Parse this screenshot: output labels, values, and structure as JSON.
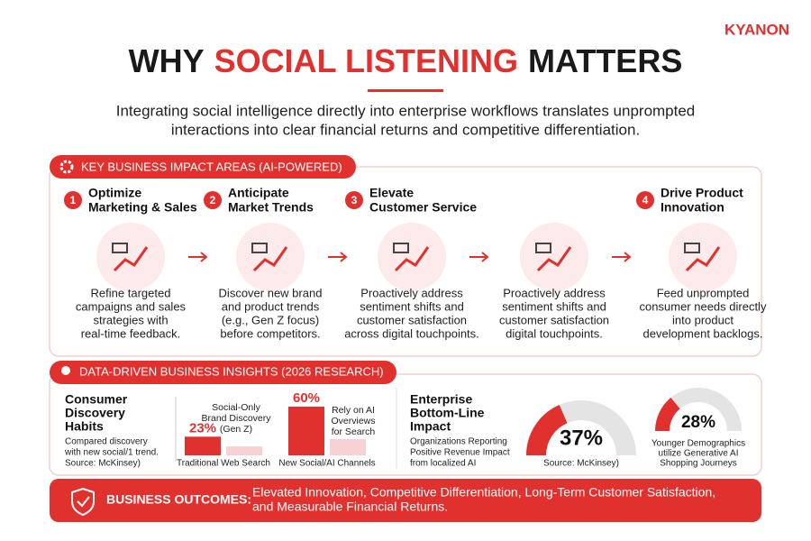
{
  "logo": "KYANON",
  "header": {
    "title_parts": [
      "WHY",
      "SOCIAL LISTENING",
      "MATTERS"
    ],
    "subtitle_lines": [
      "Integrating social intelligence directly into enterprise workflows translates unprompted",
      "interactions into clear financial returns and competitive differentiation."
    ]
  },
  "impact": {
    "heading": "KEY BUSINESS IMPACT AREAS (AI-POWERED)",
    "steps": [
      {
        "number": "1",
        "title_lines": [
          "Optimize",
          "Marketing & Sales"
        ],
        "text_lines": [
          "Refine targeted",
          "campaigns and sales",
          "strategies with",
          "real-time feedback."
        ]
      },
      {
        "number": "2",
        "title_lines": [
          "Anticipate",
          "Market Trends"
        ],
        "text_lines": [
          "Discover new brand",
          "and product trends",
          "(e.g., Gen Z focus)",
          "before competitors."
        ]
      },
      {
        "number": "3",
        "title_lines": [
          "Elevate",
          "Customer Service"
        ],
        "text_lines": [
          "Proactively address",
          "sentiment shifts and",
          "customer satisfaction",
          "across digital touchpoints."
        ]
      },
      {
        "text_lines": [
          "Proactively address",
          "sentiment shifts and",
          "customer satisfaction",
          "digital touchpoints."
        ]
      },
      {
        "number": "4",
        "title_lines": [
          "Drive Product",
          "Innovation"
        ],
        "text_lines": [
          "Feed unprompted",
          "consumer needs directly",
          "into product",
          "development backlogs."
        ]
      }
    ]
  },
  "insights": {
    "heading": "DATA-DRIVEN BUSINESS INSIGHTS (2026 RESEARCH)",
    "discovery": {
      "title_lines": [
        "Consumer",
        "Discovery",
        "Habits"
      ],
      "note_lines": [
        "Compared discovery",
        "with new social/1 trend.",
        "Source: McKinsey)"
      ],
      "groups": [
        {
          "category": "Traditional Web Search",
          "highlight": {
            "value": 23,
            "label": "23%"
          },
          "compare": 11,
          "annotation_lines": [
            "Social-Only",
            "Brand Discovery",
            "(Gen Z)"
          ]
        },
        {
          "category": "New Social/AI Channels",
          "highlight": {
            "value": 60,
            "label": "60%"
          },
          "compare": 20,
          "annotation_lines": [
            "Rely on AI",
            "Overviews",
            "for Search"
          ]
        }
      ]
    },
    "enterprise": {
      "title_lines": [
        "Enterprise",
        "Bottom-Line",
        "Impact"
      ],
      "note_lines": [
        "Organizations Reporting",
        "Positive Revenue Impact",
        "from localized AI"
      ],
      "gauges": [
        {
          "value": 37,
          "label": "37%",
          "caption_lines": [
            "Source: McKinsey)"
          ]
        },
        {
          "value": 28,
          "label": "28%",
          "caption_lines": [
            "Younger Demographics",
            "utilize Generative AI",
            "Shopping Journeys"
          ]
        }
      ]
    }
  },
  "outcomes": {
    "label": "BUSINESS OUTCOMES:",
    "text_lines": [
      "Elevated Innovation, Competitive Differentiation, Long-Term Customer Satisfaction,",
      "and Measurable Financial Returns."
    ]
  }
}
